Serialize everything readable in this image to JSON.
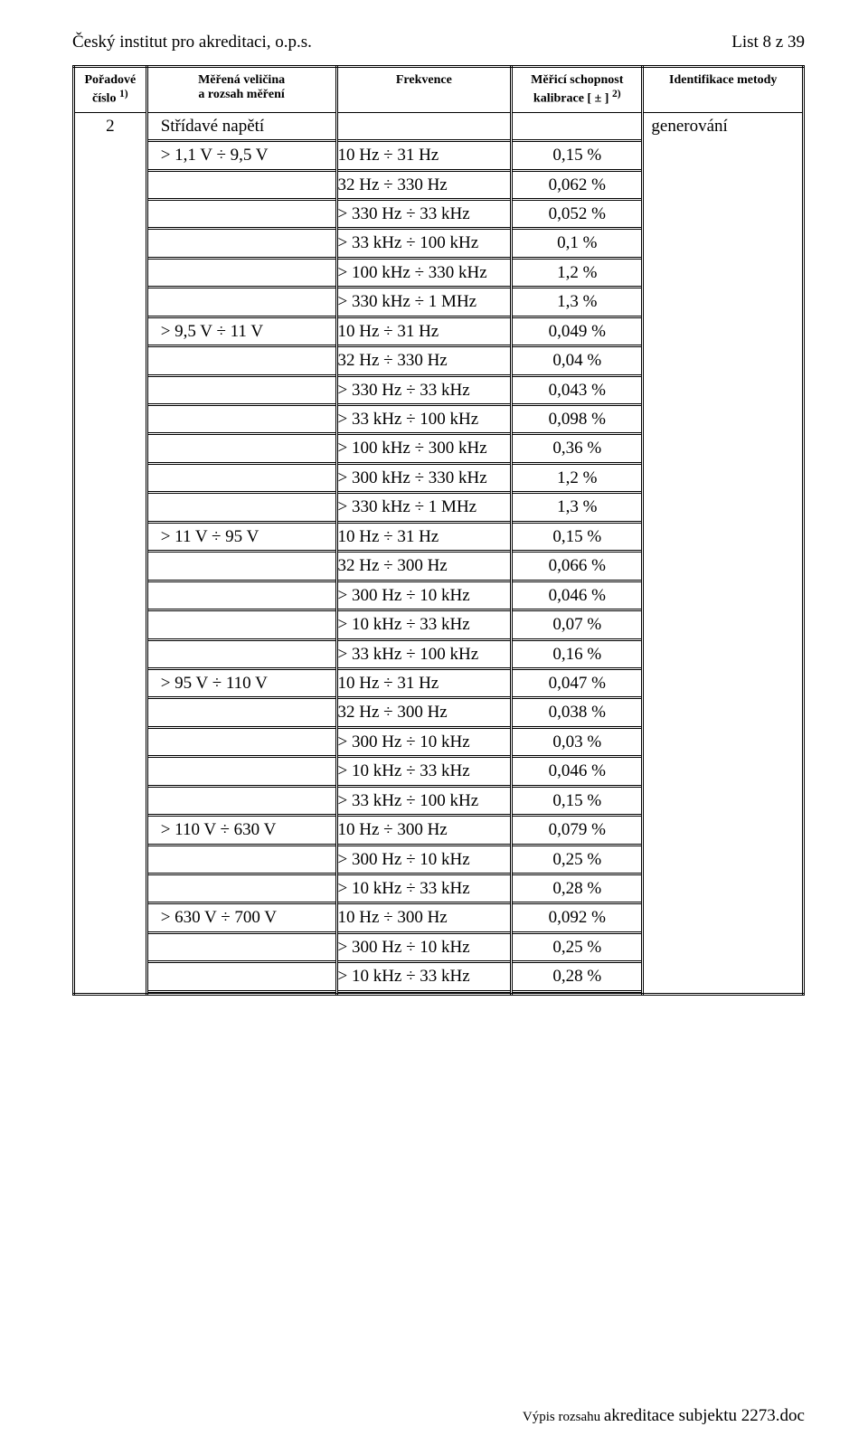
{
  "header": {
    "left": "Český institut pro akreditaci, o.p.s.",
    "right": "List 8 z 39"
  },
  "columns": {
    "c1_line1": "Pořadové",
    "c1_line2": "číslo",
    "c1_sup": "1)",
    "c2_line1": "Měřená veličina",
    "c2_line2": "a rozsah měření",
    "c3": "Frekvence",
    "c4_line1": "Měřicí schopnost",
    "c4_line2": "kalibrace [ ± ]",
    "c4_sup": "2)",
    "c5": "Identifikace metody"
  },
  "seq": "2",
  "quantity": "Střídavé napětí",
  "method": "generování",
  "groups": [
    {
      "range": "> 1,1 V ÷ 9,5 V",
      "rows": [
        {
          "freq": "10 Hz ÷ 31 Hz",
          "val": "0,15 %"
        },
        {
          "freq": "32 Hz ÷ 330 Hz",
          "val": "0,062 %"
        },
        {
          "freq": "> 330 Hz ÷ 33 kHz",
          "val": "0,052 %"
        },
        {
          "freq": "> 33 kHz ÷ 100 kHz",
          "val": "0,1 %"
        },
        {
          "freq": "> 100 kHz ÷ 330 kHz",
          "val": "1,2 %"
        },
        {
          "freq": "> 330 kHz ÷ 1 MHz",
          "val": "1,3 %"
        }
      ]
    },
    {
      "range": "> 9,5 V ÷ 11 V",
      "rows": [
        {
          "freq": "10 Hz ÷ 31 Hz",
          "val": "0,049 %"
        },
        {
          "freq": "32 Hz ÷ 330 Hz",
          "val": "0,04 %"
        },
        {
          "freq": "> 330 Hz ÷ 33 kHz",
          "val": "0,043 %"
        },
        {
          "freq": "> 33 kHz ÷ 100 kHz",
          "val": "0,098 %"
        },
        {
          "freq": "> 100 kHz ÷ 300 kHz",
          "val": "0,36 %"
        },
        {
          "freq": "> 300 kHz ÷ 330 kHz",
          "val": "1,2 %"
        },
        {
          "freq": "> 330 kHz ÷ 1 MHz",
          "val": "1,3 %"
        }
      ]
    },
    {
      "range": "> 11 V ÷ 95 V",
      "rows": [
        {
          "freq": "10 Hz ÷ 31 Hz",
          "val": "0,15 %"
        },
        {
          "freq": "32 Hz ÷ 300 Hz",
          "val": "0,066 %"
        },
        {
          "freq": "> 300 Hz ÷ 10 kHz",
          "val": "0,046 %"
        },
        {
          "freq": "> 10 kHz ÷ 33 kHz",
          "val": "0,07 %"
        },
        {
          "freq": "> 33 kHz ÷ 100 kHz",
          "val": "0,16 %"
        }
      ]
    },
    {
      "range": "> 95 V ÷ 110 V",
      "rows": [
        {
          "freq": "10 Hz ÷ 31 Hz",
          "val": "0,047 %"
        },
        {
          "freq": "32 Hz ÷ 300 Hz",
          "val": "0,038 %"
        },
        {
          "freq": "> 300 Hz ÷ 10 kHz",
          "val": "0,03 %"
        },
        {
          "freq": "> 10 kHz ÷ 33 kHz",
          "val": "0,046 %"
        },
        {
          "freq": "> 33 kHz ÷ 100 kHz",
          "val": "0,15 %"
        }
      ]
    },
    {
      "range": "> 110 V ÷ 630 V",
      "rows": [
        {
          "freq": "10 Hz ÷ 300 Hz",
          "val": "0,079 %"
        },
        {
          "freq": "> 300 Hz ÷ 10 kHz",
          "val": "0,25 %"
        },
        {
          "freq": "> 10 kHz ÷ 33 kHz",
          "val": "0,28 %"
        }
      ]
    },
    {
      "range": "> 630 V ÷ 700 V",
      "rows": [
        {
          "freq": "10 Hz ÷ 300 Hz",
          "val": "0,092 %"
        },
        {
          "freq": "> 300 Hz ÷ 10 kHz",
          "val": "0,25 %"
        },
        {
          "freq": "> 10 kHz ÷ 33 kHz",
          "val": "0,28 %"
        }
      ]
    }
  ],
  "footer": {
    "prefix": "Výpis rozsahu ",
    "filename": "akreditace subjektu 2273.doc"
  }
}
